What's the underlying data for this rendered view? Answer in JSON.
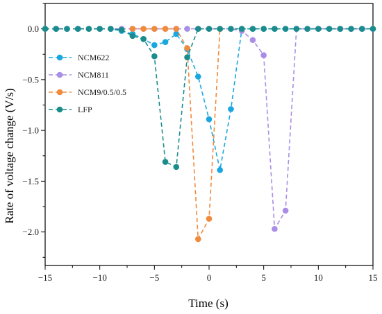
{
  "chart_data": {
    "type": "line",
    "xlabel": "Time (s)",
    "ylabel": "Rate of voltage change (V/s)",
    "xlim": [
      -15,
      15
    ],
    "ylim": [
      -2.33,
      0.25
    ],
    "xticks": [
      -15,
      -10,
      -5,
      0,
      5,
      10,
      15
    ],
    "xtick_labels": [
      "−15",
      "−10",
      "−5",
      "0",
      "5",
      "10",
      "15"
    ],
    "yticks": [
      0.0,
      -0.5,
      -1.0,
      -1.5,
      -2.0
    ],
    "ytick_labels": [
      "0.0",
      "−0.5",
      "−1.0",
      "−1.5",
      "−2.0"
    ],
    "grid": false,
    "legend_position": "left",
    "series": [
      {
        "name": "NCM622",
        "color": "#1aa7e0",
        "x": [
          -15,
          -14,
          -13,
          -12,
          -11,
          -10,
          -9,
          -8,
          -7,
          -6,
          -5,
          -4,
          -3,
          -2,
          -1,
          0,
          1,
          2,
          3,
          4,
          5,
          6,
          7,
          8,
          9,
          10,
          11,
          12,
          13,
          14,
          15
        ],
        "y": [
          0,
          0,
          0,
          0,
          0,
          0,
          0,
          -0.02,
          -0.05,
          -0.1,
          -0.16,
          -0.13,
          -0.05,
          -0.2,
          -0.47,
          -0.89,
          -1.39,
          -0.79,
          0,
          0,
          0,
          0,
          0,
          0,
          0,
          0,
          0,
          0,
          0,
          0,
          0
        ]
      },
      {
        "name": "NCM811",
        "color": "#a98ee6",
        "x": [
          -15,
          -14,
          -13,
          -12,
          -11,
          -10,
          -9,
          -8,
          -7,
          -6,
          -5,
          -4,
          -3,
          -2,
          -1,
          0,
          1,
          2,
          3,
          4,
          5,
          6,
          7,
          8,
          9,
          10,
          11,
          12,
          13,
          14,
          15
        ],
        "y": [
          0,
          0,
          0,
          0,
          0,
          0,
          0,
          0,
          0,
          0,
          0,
          0,
          0,
          0,
          0,
          0,
          0,
          0,
          -0.02,
          -0.11,
          -0.26,
          -1.97,
          -1.79,
          0,
          0,
          0,
          0,
          0,
          0,
          0,
          0
        ]
      },
      {
        "name": "NCM9/0.5/0.5",
        "color": "#f08a3c",
        "x": [
          -7,
          -6,
          -5,
          -4,
          -3,
          -2,
          -1,
          0,
          1
        ],
        "y": [
          0,
          0,
          0,
          0,
          0,
          -0.19,
          -2.07,
          -1.87,
          0
        ]
      },
      {
        "name": "LFP",
        "color": "#1a8c8c",
        "x": [
          -15,
          -14,
          -13,
          -12,
          -11,
          -10,
          -9,
          -8,
          -7,
          -6,
          -5,
          -4,
          -3,
          -2,
          -1,
          0,
          1,
          2,
          3,
          4,
          5,
          6,
          7,
          8,
          9,
          10,
          11,
          12,
          13,
          14,
          15
        ],
        "y": [
          0,
          0,
          0,
          0,
          0,
          0,
          0,
          -0.01,
          -0.07,
          -0.1,
          -0.27,
          -1.31,
          -1.36,
          -0.28,
          0,
          0,
          0,
          0,
          0,
          0,
          0,
          0,
          0,
          0,
          0,
          0,
          0,
          0,
          0,
          0,
          0
        ]
      }
    ]
  }
}
